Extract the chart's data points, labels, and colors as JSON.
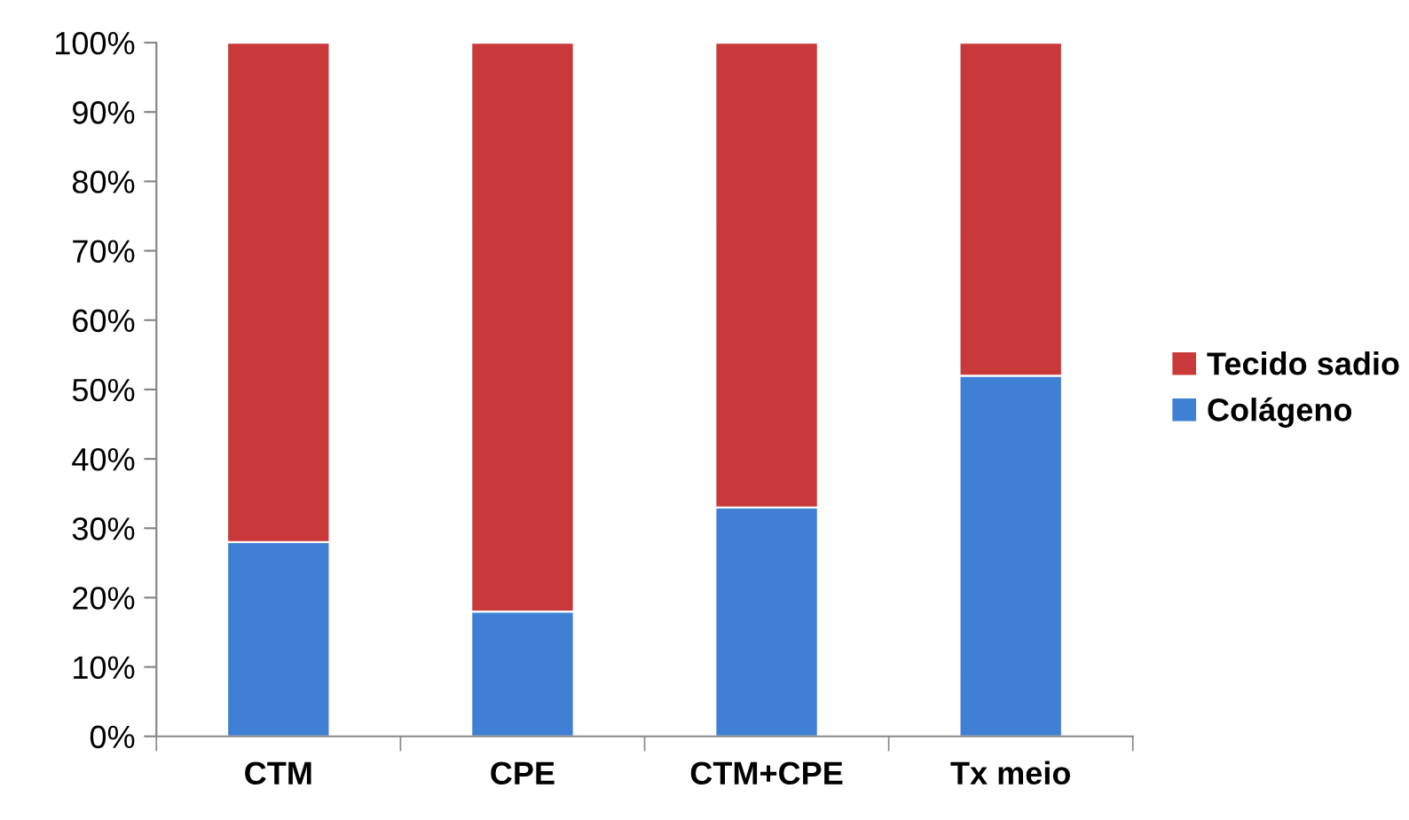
{
  "chart_data": {
    "type": "bar",
    "stacked": true,
    "categories": [
      "CTM",
      "CPE",
      "CTM+CPE",
      "Tx meio"
    ],
    "series": [
      {
        "name": "Colágeno",
        "color": "#3f7fd4",
        "values": [
          28,
          18,
          33,
          52
        ]
      },
      {
        "name": "Tecido sadio",
        "color": "#c9393a",
        "values": [
          72,
          82,
          67,
          48
        ]
      }
    ],
    "ylim": [
      0,
      100
    ],
    "yticks": [
      {
        "value": 0,
        "label": "0%"
      },
      {
        "value": 10,
        "label": "10%"
      },
      {
        "value": 20,
        "label": "20%"
      },
      {
        "value": 30,
        "label": "30%"
      },
      {
        "value": 40,
        "label": "40%"
      },
      {
        "value": 50,
        "label": "50%"
      },
      {
        "value": 60,
        "label": "60%"
      },
      {
        "value": 70,
        "label": "70%"
      },
      {
        "value": 80,
        "label": "80%"
      },
      {
        "value": 90,
        "label": "90%"
      },
      {
        "value": 100,
        "label": "100%"
      }
    ],
    "grid": false,
    "legend": "right"
  }
}
